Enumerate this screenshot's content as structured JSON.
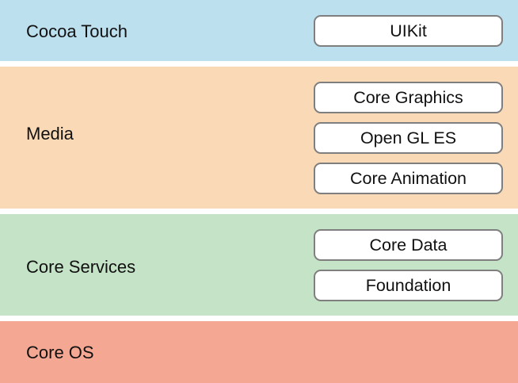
{
  "colors": {
    "cocoa_touch": "#bde0ee",
    "media": "#fad9b6",
    "core_services": "#c5e3c7",
    "core_os": "#f4a893",
    "framework_border": "#7f7f7f",
    "framework_fill": "#ffffff"
  },
  "layers": {
    "cocoa_touch": {
      "label": "Cocoa Touch",
      "frameworks": [
        "UIKit"
      ]
    },
    "media": {
      "label": "Media",
      "frameworks": [
        "Core Graphics",
        "Open GL ES",
        "Core Animation"
      ]
    },
    "core_services": {
      "label": "Core Services",
      "frameworks": [
        "Core Data",
        "Foundation"
      ]
    },
    "core_os": {
      "label": "Core OS",
      "frameworks": []
    }
  }
}
